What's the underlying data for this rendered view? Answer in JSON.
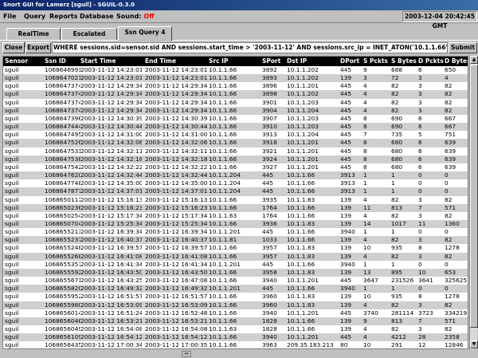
{
  "window": {
    "title": "Snort GUI for Lamerz [sguil] - SGUIL-0.3.0"
  },
  "menu": {
    "items": [
      "File",
      "Query",
      "Reports",
      "Database"
    ],
    "sound_label": "Sound:",
    "sound_value": "Off"
  },
  "clock": "2003-12-04 20:42:45 GMT",
  "tabs": [
    "RealTime Events",
    "Escalated Events",
    "Ssn Query 4"
  ],
  "query": {
    "close_label": "Close",
    "export_label": "Export",
    "text": "WHERE sessions.sid=sensor.sid AND sessions.start_time > '2003-11-12' AND  sessions.src_ip  = INET_ATON('10.1.1.66') OR sessions.dst",
    "submit_label": "Submit"
  },
  "table": {
    "columns": [
      "Sensor",
      "Ssn ID",
      "Start Time",
      "End Time",
      "Src IP",
      "SPort",
      "Dst IP",
      "DPort",
      "S Pckts",
      "S Bytes",
      "D Pckts",
      "D Bytes"
    ],
    "rows": [
      [
        "sguil",
        "10686469911",
        "2003-11-12 14:23:01",
        "2003-11-12 14:23:01",
        "10.1.1.66",
        "3892",
        "10.1.1.202",
        "445",
        "9",
        "688",
        "6",
        "650"
      ],
      [
        "sguil",
        "10686470214",
        "2003-11-12 14:23:01",
        "2003-11-12 14:23:01",
        "10.1.1.66",
        "3893",
        "10.1.1.202",
        "139",
        "3",
        "72",
        "3",
        "4"
      ],
      [
        "sguil",
        "10686473746",
        "2003-11-12 14:29:34",
        "2003-11-12 14:29:34",
        "10.1.1.66",
        "3896",
        "10.1.1.201",
        "445",
        "4",
        "82",
        "3",
        "82"
      ],
      [
        "sguil",
        "10686473746",
        "2003-11-12 14:29:34",
        "2003-11-12 14:29:34",
        "10.1.1.66",
        "3898",
        "10.1.1.202",
        "445",
        "4",
        "82",
        "3",
        "82"
      ],
      [
        "sguil",
        "10686473746",
        "2003-11-12 14:29:34",
        "2003-11-12 14:29:34",
        "10.1.1.66",
        "3901",
        "10.1.1.203",
        "445",
        "4",
        "82",
        "3",
        "82"
      ],
      [
        "sguil",
        "10686473746",
        "2003-11-12 14:29:34",
        "2003-11-12 14:29:34",
        "10.1.1.66",
        "3904",
        "10.1.1.204",
        "445",
        "4",
        "82",
        "3",
        "82"
      ],
      [
        "sguil",
        "10686473962",
        "2003-11-12 14:30:39",
        "2003-11-12 14:30:39",
        "10.1.1.66",
        "3907",
        "10.1.1.203",
        "445",
        "8",
        "690",
        "6",
        "667"
      ],
      [
        "sguil",
        "10686474447",
        "2003-11-12 14:30:44",
        "2003-11-12 14:30:44",
        "10.1.1.66",
        "3910",
        "10.1.1.203",
        "445",
        "8",
        "690",
        "6",
        "667"
      ],
      [
        "sguil",
        "10686474958",
        "2003-11-12 14:31:00",
        "2003-11-12 14:31:00",
        "10.1.1.66",
        "3913",
        "10.1.1.204",
        "445",
        "7",
        "735",
        "5",
        "751"
      ],
      [
        "sguil",
        "10686475263",
        "2003-11-12 14:32:06",
        "2003-11-12 14:32:06",
        "10.1.1.66",
        "3918",
        "10.1.1.201",
        "445",
        "8",
        "680",
        "6",
        "639"
      ],
      [
        "sguil",
        "10686475310",
        "2003-11-12 14:32:11",
        "2003-11-12 14:32:11",
        "10.1.1.66",
        "3921",
        "10.1.1.201",
        "445",
        "8",
        "680",
        "6",
        "639"
      ],
      [
        "sguil",
        "10686475383",
        "2003-11-12 14:32:18",
        "2003-11-12 14:32:18",
        "10.1.1.66",
        "3924",
        "10.1.1.201",
        "445",
        "8",
        "680",
        "6",
        "639"
      ],
      [
        "sguil",
        "10686475428",
        "2003-11-12 14:32:22",
        "2003-11-12 14:32:22",
        "10.1.1.66",
        "3927",
        "10.1.1.201",
        "445",
        "8",
        "680",
        "6",
        "639"
      ],
      [
        "sguil",
        "10686476208",
        "2003-11-12 14:32:44",
        "2003-11-12 14:32:44",
        "10.1.1.204",
        "445",
        "10.1.1.66",
        "3913",
        "1",
        "1",
        "0",
        "0"
      ],
      [
        "sguil",
        "10686477482",
        "2003-11-12 14:35:00",
        "2003-11-12 14:35:00",
        "10.1.1.204",
        "445",
        "10.1.1.66",
        "3913",
        "1",
        "1",
        "0",
        "0"
      ],
      [
        "sguil",
        "10686478776",
        "2003-11-12 14:37:01",
        "2003-11-12 14:37:01",
        "10.1.1.204",
        "445",
        "10.1.1.66",
        "3913",
        "1",
        "1",
        "0",
        "0"
      ],
      [
        "sguil",
        "10686501177",
        "2003-11-12 15:16:13",
        "2003-11-12 15:16:13",
        "10.1.1.66",
        "3935",
        "10.1.1.83",
        "139",
        "4",
        "82",
        "3",
        "82"
      ],
      [
        "sguil",
        "10686502365",
        "2003-11-12 15:16:23",
        "2003-11-12 15:16:23",
        "10.1.1.66",
        "1764",
        "10.1.1.66",
        "139",
        "11",
        "813",
        "7",
        "571"
      ],
      [
        "sguil",
        "10686502548",
        "2003-11-12 15:17:34",
        "2003-11-12 15:17:34",
        "10.1.1.63",
        "1764",
        "10.1.1.66",
        "139",
        "4",
        "82",
        "3",
        "82"
      ],
      [
        "sguil",
        "10686507049",
        "2003-11-12 15:25:34",
        "2003-11-12 15:25:34",
        "10.1.1.66",
        "3936",
        "10.1.1.83",
        "139",
        "14",
        "1017",
        "11",
        "1360"
      ],
      [
        "sguil",
        "10686552137",
        "2003-11-12 16:39:34",
        "2003-11-12 16:39:34",
        "10.1.1.201",
        "445",
        "10.1.1.66",
        "3940",
        "1",
        "1",
        "0",
        "0"
      ],
      [
        "sguil",
        "10686552377",
        "2003-11-12 16:40:37",
        "2003-11-12 16:40:37",
        "10.1.1.81",
        "1033",
        "10.1.1.66",
        "139",
        "4",
        "82",
        "3",
        "82"
      ],
      [
        "sguil",
        "10686552482",
        "2003-11-12 16:39:57",
        "2003-11-12 16:39:57",
        "10.1.1.66",
        "3957",
        "10.1.1.83",
        "139",
        "10",
        "935",
        "8",
        "1278"
      ],
      [
        "sguil",
        "10686552688",
        "2003-11-12 16:41:08",
        "2003-11-12 16:41:08",
        "10.1.1.66",
        "3957",
        "10.1.1.83",
        "139",
        "4",
        "82",
        "3",
        "82"
      ],
      [
        "sguil",
        "10686553570",
        "2003-11-12 16:41:34",
        "2003-11-12 16:41:34",
        "10.1.1.201",
        "445",
        "10.1.1.66",
        "3940",
        "1",
        "1",
        "0",
        "0"
      ],
      [
        "sguil",
        "10686555924",
        "2003-11-12 16:43:50",
        "2003-11-12 16:43:50",
        "10.1.1.66",
        "3958",
        "10.1.1.83",
        "139",
        "13",
        "895",
        "10",
        "653"
      ],
      [
        "sguil",
        "10686556712",
        "2003-11-12 16:43:25",
        "2003-11-12 16:47:08",
        "10.1.1.66",
        "3940",
        "10.1.1.201",
        "445",
        "3647",
        "231526",
        "3641",
        "325625"
      ],
      [
        "sguil",
        "10686558206",
        "2003-11-12 16:49:32",
        "2003-11-12 16:49:32",
        "10.1.1.201",
        "445",
        "10.1.1.66",
        "3940",
        "1",
        "1",
        "0",
        "0"
      ],
      [
        "sguil",
        "10686559525",
        "2003-11-12 16:51:57",
        "2003-11-12 16:51:57",
        "10.1.1.66",
        "3960",
        "10.1.1.83",
        "139",
        "10",
        "935",
        "8",
        "1278"
      ],
      [
        "sguil",
        "10686559809",
        "2003-11-12 16:53:09",
        "2003-11-12 16:53:09",
        "10.1.1.66",
        "3960",
        "10.1.1.83",
        "139",
        "4",
        "82",
        "3",
        "82"
      ],
      [
        "sguil",
        "10686560142",
        "2003-11-12 16:51:24",
        "2003-11-12 16:52:48",
        "10.1.1.66",
        "3940",
        "10.1.1.201",
        "445",
        "3740",
        "281114",
        "3723",
        "334219"
      ],
      [
        "sguil",
        "10686560460",
        "2003-11-12 16:53:21",
        "2003-11-12 16:53:21",
        "10.1.1.66",
        "1828",
        "10.1.1.66",
        "139",
        "9",
        "813",
        "7",
        "571"
      ],
      [
        "sguil",
        "10686560490",
        "2003-11-12 16:54:08",
        "2003-11-12 16:54:08",
        "10.1.1.63",
        "1828",
        "10.1.1.66",
        "139",
        "4",
        "82",
        "3",
        "82"
      ],
      [
        "sguil",
        "10686561093",
        "2003-11-12 16:54:12",
        "2003-11-12 16:54:12",
        "10.1.1.66",
        "3940",
        "10.1.1.201",
        "445",
        "4",
        "4212",
        "28",
        "2358"
      ],
      [
        "sguil",
        "10686564353",
        "2003-11-12 17:00:34",
        "2003-11-12 17:00:35",
        "10.1.1.66",
        "3963",
        "209.35.183.213",
        "80",
        "10",
        "291",
        "12",
        "12846"
      ]
    ]
  },
  "colors": {
    "title_bg": "#0a246a",
    "sound_off": "#ff0000",
    "header_bg": "#000000",
    "row_alt": "#cfcfcf"
  }
}
